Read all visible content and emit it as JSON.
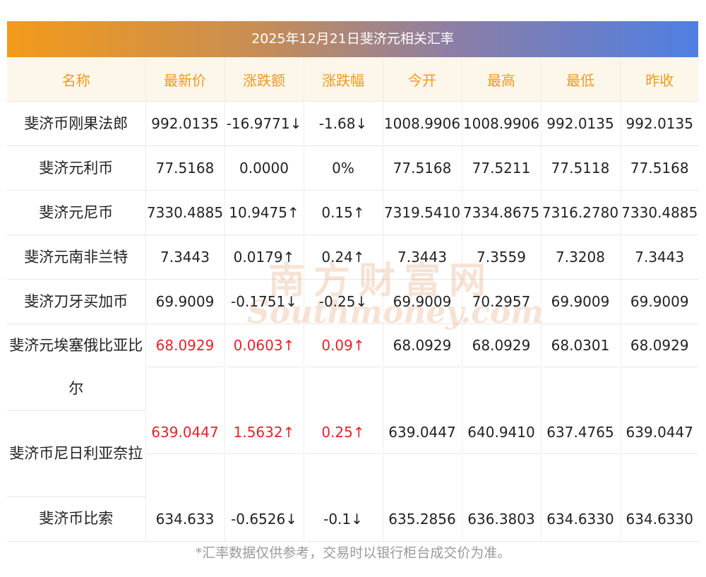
{
  "title": "2025年12月21日斐济元相关汇率",
  "headers": [
    "名称",
    "最新价",
    "涨跌额",
    "涨跌幅",
    "今开",
    "最高",
    "最低",
    "昨收"
  ],
  "rows": [
    {
      "name": "斐济币刚果法郎",
      "latest": "992.0135",
      "change": "-16.9771↓",
      "pct": "-1.68↓",
      "open": "1008.9906",
      "high": "1008.9906",
      "low": "992.0135",
      "prev": "992.0135",
      "trend": "down"
    },
    {
      "name": "斐济元利币",
      "latest": "77.5168",
      "change": "0.0000",
      "pct": "0%",
      "open": "77.5168",
      "high": "77.5211",
      "low": "77.5118",
      "prev": "77.5168",
      "trend": "flat"
    },
    {
      "name": "斐济元尼币",
      "latest": "7330.4885",
      "change": "10.9475↑",
      "pct": "0.15↑",
      "open": "7319.5410",
      "high": "7334.8675",
      "low": "7316.2780",
      "prev": "7330.4885",
      "trend": "up"
    },
    {
      "name": "斐济元南非兰特",
      "latest": "7.3443",
      "change": "0.0179↑",
      "pct": "0.24↑",
      "open": "7.3443",
      "high": "7.3559",
      "low": "7.3208",
      "prev": "7.3443",
      "trend": "up"
    },
    {
      "name": "斐济刀牙买加币",
      "latest": "69.9009",
      "change": "-0.1751↓",
      "pct": "-0.25↓",
      "open": "69.9009",
      "high": "70.2957",
      "low": "69.9009",
      "prev": "69.9009",
      "trend": "down"
    },
    {
      "name": "斐济元埃塞俄比亚比尔",
      "latest": "68.0929",
      "change": "0.0603↑",
      "pct": "0.09↑",
      "open": "68.0929",
      "high": "68.0929",
      "low": "68.0301",
      "prev": "68.0929",
      "trend": "up"
    },
    {
      "name": "斐济币尼日利亚奈拉",
      "latest": "639.0447",
      "change": "1.5632↑",
      "pct": "0.25↑",
      "open": "639.0447",
      "high": "640.9410",
      "low": "637.4765",
      "prev": "639.0447",
      "trend": "up"
    },
    {
      "name": "斐济币比索",
      "latest": "634.633",
      "change": "-0.6526↓",
      "pct": "-0.1↓",
      "open": "635.2856",
      "high": "636.3803",
      "low": "634.6330",
      "prev": "634.6330",
      "trend": "down"
    }
  ],
  "footer": "*汇率数据仅供参考，交易时以银行柜台成交价为准。",
  "watermark": {
    "cn": "南方财富网",
    "en": "Southmoney.com"
  },
  "colors": {
    "up": "#e8222a",
    "down": "#2a8a2a",
    "header_text": "#f39a1a",
    "header_bg": "#fdf6ea"
  }
}
